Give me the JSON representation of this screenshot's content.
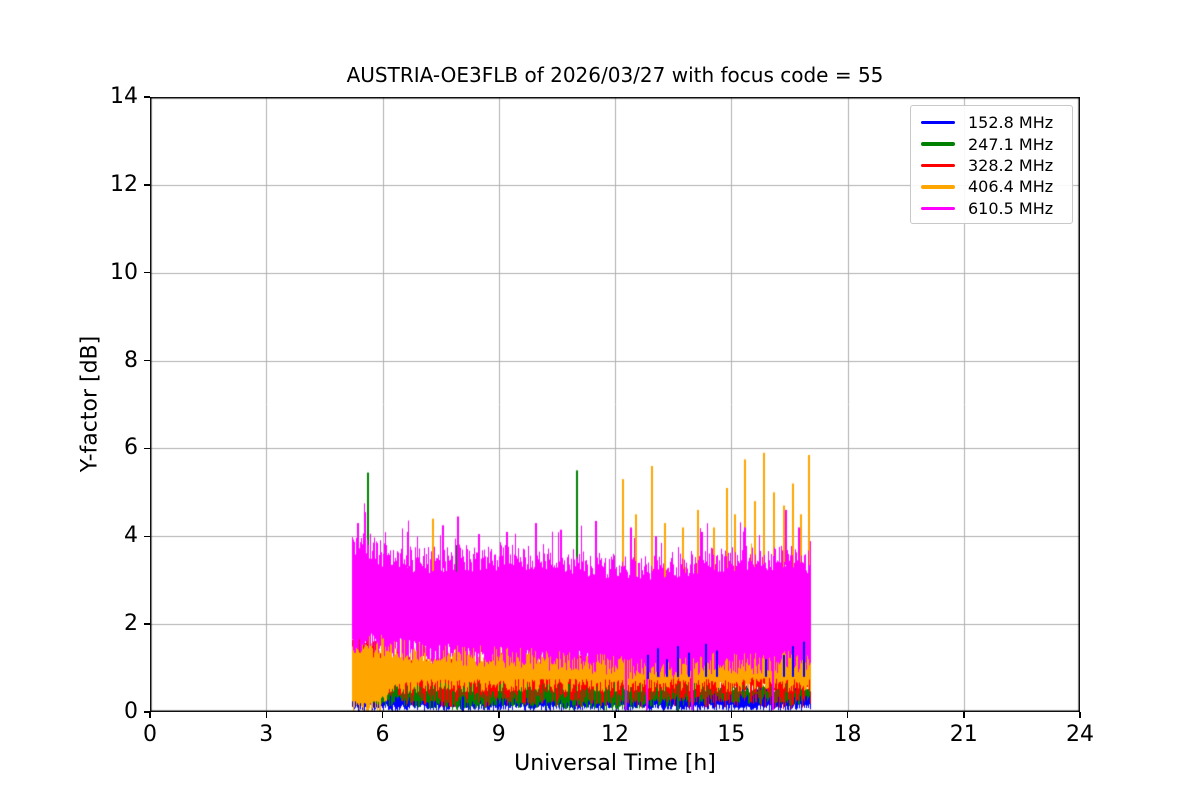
{
  "chart_data": {
    "type": "line",
    "title": "AUSTRIA-OE3FLB of 2026/03/27 with focus code = 55",
    "xlabel": "Universal Time [h]",
    "ylabel": "Y-factor [dB]",
    "xlim": [
      0,
      24
    ],
    "ylim": [
      0,
      14
    ],
    "xticks": [
      0,
      3,
      6,
      9,
      12,
      15,
      18,
      21,
      24
    ],
    "yticks": [
      0,
      2,
      4,
      6,
      8,
      10,
      12,
      14
    ],
    "grid": true,
    "grid_color": "#b0b0b0",
    "background": "#ffffff",
    "legend_position": "upper right",
    "time_range": [
      5.21,
      17.03
    ],
    "render_seed": 42,
    "series": [
      {
        "label": "152.8 MHz",
        "color": "#0000ff",
        "band": {
          "t": [
            5.2,
            17.0
          ],
          "min": [
            0.1,
            0.1
          ],
          "max": [
            0.5,
            0.5
          ]
        },
        "noise": {
          "min_jitter": 0.08,
          "max_jitter": 0.12,
          "spike_chance": 0.0,
          "spike_amp": 0
        },
        "spikes_on_top": true,
        "spikes": [
          [
            8.08,
            0.35,
            0.02
          ],
          [
            12.85,
            1.3,
            0.75
          ],
          [
            13.1,
            1.45,
            0.8
          ],
          [
            13.35,
            1.2,
            0.8
          ],
          [
            13.62,
            1.5,
            0.8
          ],
          [
            13.9,
            1.35,
            0.8
          ],
          [
            14.35,
            1.55,
            0.8
          ],
          [
            14.62,
            1.4,
            0.8
          ],
          [
            15.9,
            1.2,
            0.8
          ],
          [
            16.35,
            1.3,
            0.8
          ],
          [
            16.6,
            1.5,
            0.8
          ],
          [
            16.88,
            1.6,
            0.8
          ]
        ],
        "dips": []
      },
      {
        "label": "247.1 MHz",
        "color": "#008000",
        "band": {
          "t": [
            5.2,
            6.3,
            7.0,
            8.0,
            9.0,
            10.0,
            11.0,
            12.0,
            13.0,
            13.8,
            14.5,
            15.5,
            16.5,
            17.0
          ],
          "min": [
            0.3,
            0.25,
            0.2,
            0.15,
            0.2,
            0.2,
            0.15,
            0.15,
            0.2,
            0.25,
            0.3,
            0.3,
            0.25,
            0.3
          ],
          "max": [
            0.8,
            0.85,
            0.8,
            0.85,
            0.9,
            0.85,
            0.9,
            0.85,
            0.9,
            0.8,
            0.65,
            0.6,
            0.65,
            0.6
          ]
        },
        "noise": {
          "min_jitter": 0.12,
          "max_jitter": 0.18,
          "spike_chance": 0.03,
          "spike_amp": 0.35
        },
        "spikes": [
          [
            5.63,
            5.45,
            0.5
          ],
          [
            7.93,
            3.8,
            0.6
          ],
          [
            11.02,
            5.5,
            0.5
          ]
        ],
        "dips": [
          [
            13.6,
            0.02
          ]
        ]
      },
      {
        "label": "328.2 MHz",
        "color": "#ff0000",
        "band": {
          "t": [
            5.2,
            5.4,
            6.0,
            7.0,
            9.0,
            11.0,
            12.0,
            12.8,
            13.5,
            14.5,
            15.5,
            16.5,
            17.0
          ],
          "min": [
            0.5,
            0.5,
            0.45,
            0.4,
            0.4,
            0.4,
            0.4,
            0.4,
            0.35,
            0.4,
            0.4,
            0.35,
            0.4
          ],
          "max": [
            1.8,
            1.7,
            1.3,
            1.15,
            1.1,
            1.15,
            1.2,
            1.3,
            1.2,
            1.15,
            1.1,
            1.15,
            1.1
          ]
        },
        "noise": {
          "min_jitter": 0.3,
          "max_jitter": 0.2,
          "spike_chance": 0.04,
          "spike_amp": 0.4
        },
        "spikes": [],
        "dips": []
      },
      {
        "label": "406.4 MHz",
        "color": "#ffa500",
        "band": {
          "t": [
            5.2,
            5.9,
            6.2,
            7.0,
            9.0,
            11.0,
            11.5,
            12.0,
            12.5,
            13.0,
            13.6,
            14.2,
            15.0,
            15.7,
            16.3,
            17.0
          ],
          "min": [
            0.1,
            0.1,
            0.5,
            0.6,
            0.6,
            0.6,
            0.6,
            0.6,
            0.6,
            0.6,
            0.65,
            0.6,
            0.6,
            0.65,
            0.6,
            0.6
          ],
          "max": [
            1.7,
            1.6,
            1.55,
            1.5,
            1.55,
            1.5,
            1.7,
            2.0,
            2.3,
            2.5,
            2.7,
            2.4,
            2.6,
            2.9,
            3.0,
            2.8
          ]
        },
        "noise": {
          "min_jitter": 0.15,
          "max_jitter": 0.4,
          "spike_chance": 0.07,
          "spike_amp": 1.1
        },
        "spikes": [
          [
            7.3,
            4.4
          ],
          [
            12.2,
            5.3
          ],
          [
            12.55,
            4.5
          ],
          [
            12.95,
            5.6
          ],
          [
            13.3,
            4.3
          ],
          [
            13.75,
            4.2
          ],
          [
            14.15,
            4.6
          ],
          [
            14.55,
            4.2
          ],
          [
            14.9,
            5.1
          ],
          [
            15.1,
            4.5
          ],
          [
            15.35,
            5.75
          ],
          [
            15.6,
            4.8
          ],
          [
            15.85,
            5.9
          ],
          [
            16.1,
            5.0
          ],
          [
            16.35,
            4.7
          ],
          [
            16.6,
            5.2
          ],
          [
            16.8,
            4.5
          ],
          [
            17.0,
            5.85
          ]
        ],
        "dips": [
          [
            5.9,
            0.02
          ]
        ]
      },
      {
        "label": "610.5 MHz",
        "color": "#ff00ff",
        "band": {
          "t": [
            5.2,
            5.5,
            6.0,
            7.0,
            8.0,
            9.0,
            10.0,
            11.0,
            12.0,
            12.7,
            13.5,
            14.5,
            15.5,
            16.5,
            17.0
          ],
          "min": [
            1.5,
            1.6,
            1.5,
            1.35,
            1.3,
            1.25,
            1.2,
            1.15,
            1.05,
            0.95,
            1.0,
            1.1,
            1.1,
            1.15,
            1.1
          ],
          "max": [
            3.8,
            3.85,
            3.6,
            3.45,
            3.5,
            3.5,
            3.55,
            3.4,
            3.3,
            3.25,
            3.35,
            3.45,
            3.5,
            3.55,
            3.45
          ]
        },
        "noise": {
          "min_jitter": 0.25,
          "max_jitter": 0.3,
          "spike_chance": 0.06,
          "spike_amp": 0.9
        },
        "spikes": [
          [
            5.38,
            4.3
          ],
          [
            5.55,
            4.55
          ],
          [
            6.65,
            4.1
          ],
          [
            7.55,
            4.25
          ],
          [
            7.95,
            4.45
          ],
          [
            8.5,
            4.05
          ],
          [
            9.2,
            4.1
          ],
          [
            9.95,
            4.3
          ],
          [
            10.6,
            4.15
          ],
          [
            11.5,
            4.35
          ],
          [
            12.4,
            4.2
          ],
          [
            13.05,
            4.0
          ],
          [
            14.25,
            4.1
          ],
          [
            15.35,
            4.2
          ],
          [
            16.4,
            4.6
          ],
          [
            16.75,
            4.2
          ]
        ],
        "dips": [
          [
            12.26,
            0.05
          ],
          [
            12.8,
            0.05
          ],
          [
            13.96,
            0.05
          ],
          [
            16.05,
            0.05
          ]
        ]
      }
    ]
  }
}
